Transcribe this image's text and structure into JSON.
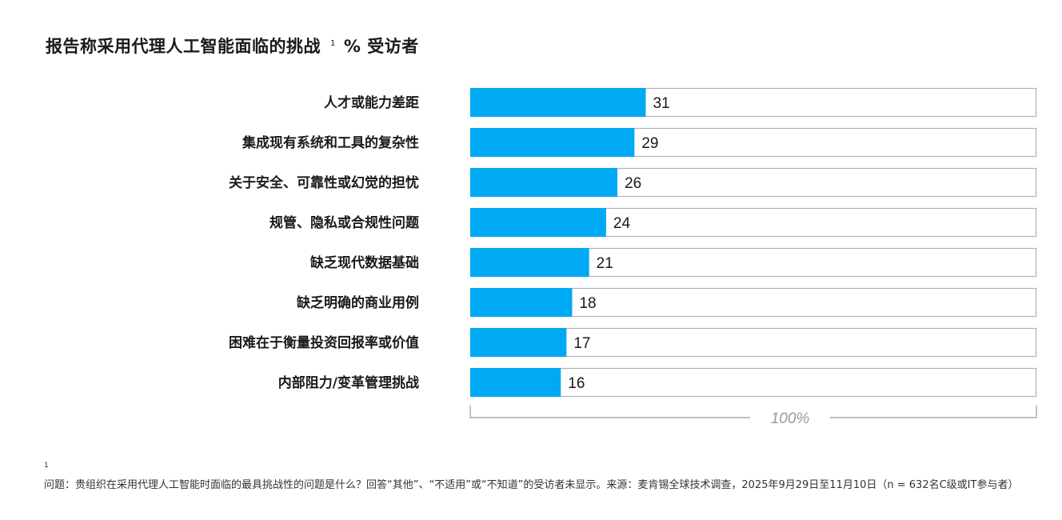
{
  "title": "报告称采用代理人工智能面临的挑战",
  "title_footnote_marker": "1",
  "unit": "% 受访者",
  "footnote": {
    "marker": "1",
    "text": "问题：贵组织在采用代理人工智能时面临的最具挑战性的问题是什么？回答“其他”、“不适用”或“不知道”的受访者未显示。来源：麦肯锡全球技术调查，2025年9月29日至11月10日（n = 632名C级或IT参与者）"
  },
  "chart_data": {
    "type": "bar",
    "orientation": "horizontal",
    "categories": [
      "人才或能力差距",
      "集成现有系统和工具的复杂性",
      "关于安全、可靠性或幻觉的担忧",
      "规管、隐私或合规性问题",
      "缺乏现代数据基础",
      "缺乏明确的商业用例",
      "困难在于衡量投资回报率或价值",
      "内部阻力/变革管理挑战"
    ],
    "values": [
      31,
      29,
      26,
      24,
      21,
      18,
      17,
      16
    ],
    "xlim": [
      0,
      100
    ],
    "scale_label": "100%",
    "bar_color": "#00a9f4",
    "track_border_color": "#b3b3b3",
    "grid": false,
    "legend": "none"
  }
}
